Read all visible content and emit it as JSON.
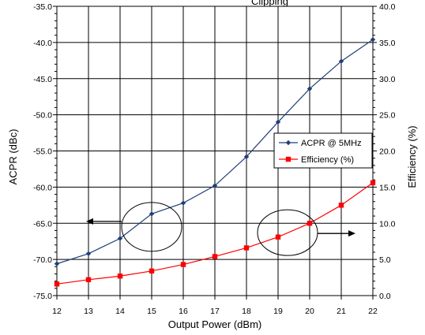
{
  "chart_data": {
    "type": "line",
    "title": "Clipping",
    "xlabel": "Output Power (dBm)",
    "ylabel_left": "ACPR (dBc)",
    "ylabel_right": "Efficiency (%)",
    "x": [
      12,
      13,
      14,
      15,
      16,
      17,
      18,
      19,
      20,
      21,
      22
    ],
    "xlim": [
      12,
      22
    ],
    "ylim_left": [
      -75,
      -35
    ],
    "ylim_right": [
      0,
      40
    ],
    "x_ticks": [
      "12",
      "13",
      "14",
      "15",
      "16",
      "17",
      "18",
      "19",
      "20",
      "21",
      "22"
    ],
    "y_left_ticks": [
      "-35.0",
      "-40.0",
      "-45.0",
      "-50.0",
      "-55.0",
      "-60.0",
      "-65.0",
      "-70.0",
      "-75.0"
    ],
    "y_right_ticks": [
      "40.0",
      "35.0",
      "30.0",
      "25.0",
      "20.0",
      "15.0",
      "10.0",
      "5.0",
      "0.0"
    ],
    "grid": true,
    "legend_position": "right-middle",
    "series": [
      {
        "name": "ACPR @ 5MHz",
        "axis": "left",
        "color": "#1f3f7a",
        "marker": "diamond",
        "values": [
          -70.6,
          -69.2,
          -67.1,
          -63.7,
          -62.2,
          -59.8,
          -55.8,
          -51.0,
          -46.4,
          -42.6,
          -39.6
        ]
      },
      {
        "name": "Efficiency (%)",
        "axis": "right",
        "color": "#ff0000",
        "marker": "square",
        "values": [
          1.6,
          2.2,
          2.7,
          3.4,
          4.3,
          5.4,
          6.6,
          8.1,
          10.0,
          12.5,
          15.6
        ]
      }
    ],
    "annotations": [
      {
        "shape": "ellipse",
        "points_to": "left axis",
        "x": 15.0,
        "y_left": -65.5
      },
      {
        "shape": "ellipse",
        "points_to": "right axis",
        "x": 19.3,
        "y_left": -66.3
      }
    ]
  }
}
